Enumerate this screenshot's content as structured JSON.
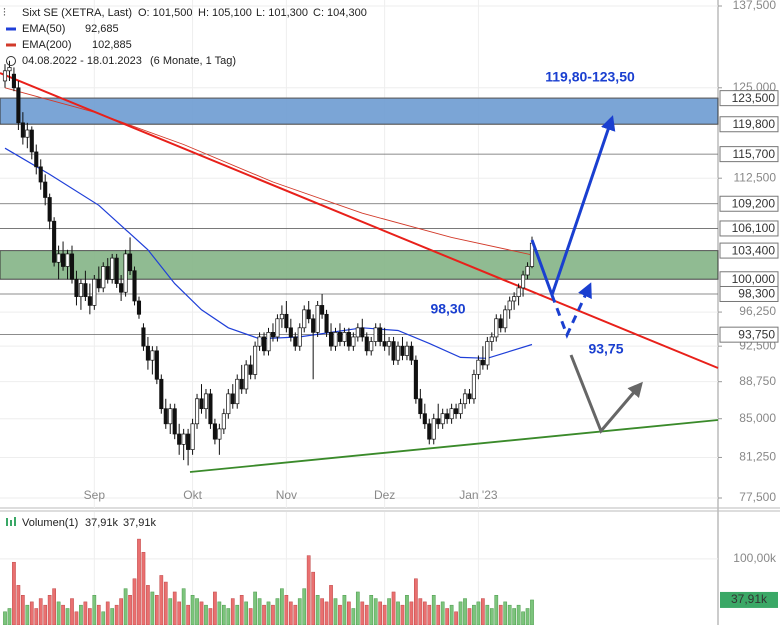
{
  "chart_data": {
    "type": "candlestick",
    "title": "Sixt SE (XETRA, Last)",
    "ohlc_labels": [
      "O: 101,500",
      "H: 105,100",
      "L: 101,300",
      "C: 104,300"
    ],
    "date_range": "04.08.2022 - 18.01.2023",
    "period": "(6 Monate, 1 Tag)",
    "log_scale": true,
    "grid": true,
    "ylim": [
      77.5,
      137.5
    ],
    "yticks": [
      {
        "value": 137.5,
        "label": "137,500"
      },
      {
        "value": 125,
        "label": "125,000"
      },
      {
        "value": 112.5,
        "label": "112,500"
      },
      {
        "value": 96.25,
        "label": "96,250"
      },
      {
        "value": 92.5,
        "label": "92,500"
      },
      {
        "value": 88.75,
        "label": "88,750"
      },
      {
        "value": 85,
        "label": "85,000"
      },
      {
        "value": 81.25,
        "label": "81,250"
      },
      {
        "value": 77.5,
        "label": "77,500"
      }
    ],
    "categories": [
      null,
      null,
      null,
      null,
      null,
      null,
      null,
      null,
      null,
      null,
      null,
      null,
      null,
      null,
      null,
      null,
      null,
      null,
      null,
      null,
      "Sep",
      null,
      null,
      null,
      null,
      null,
      null,
      null,
      null,
      null,
      null,
      null,
      null,
      null,
      null,
      null,
      null,
      null,
      null,
      null,
      null,
      null,
      "Okt",
      null,
      null,
      null,
      null,
      null,
      null,
      null,
      null,
      null,
      null,
      null,
      null,
      null,
      null,
      null,
      null,
      null,
      null,
      null,
      null,
      "Nov",
      null,
      null,
      null,
      null,
      null,
      null,
      null,
      null,
      null,
      null,
      null,
      null,
      null,
      null,
      null,
      null,
      null,
      null,
      null,
      null,
      null,
      "Dez",
      null,
      null,
      null,
      null,
      null,
      null,
      null,
      null,
      null,
      null,
      null,
      null,
      null,
      null,
      null,
      null,
      null,
      null,
      null,
      null,
      "Jan '23",
      null,
      null,
      null,
      null,
      null,
      null,
      null,
      null,
      null,
      null,
      null,
      null
    ],
    "candles": [
      [
        126,
        128.5,
        125,
        127.5
      ],
      [
        127.5,
        129,
        126,
        128
      ],
      [
        127,
        128,
        124.5,
        125
      ],
      [
        125,
        126,
        119,
        120
      ],
      [
        120,
        121.5,
        117,
        118
      ],
      [
        118,
        120,
        116.5,
        119
      ],
      [
        119,
        119.5,
        115,
        116
      ],
      [
        116,
        117,
        113,
        114
      ],
      [
        114,
        115,
        111,
        112
      ],
      [
        112,
        113,
        109,
        110
      ],
      [
        110,
        110.5,
        106,
        107
      ],
      [
        107,
        107.5,
        101.5,
        102
      ],
      [
        102,
        104,
        100,
        103
      ],
      [
        103,
        104.5,
        101,
        101.5
      ],
      [
        101.5,
        103.5,
        100,
        103
      ],
      [
        103,
        104,
        99.5,
        100
      ],
      [
        100,
        101,
        97,
        98
      ],
      [
        98,
        100,
        96.5,
        99.5
      ],
      [
        99.5,
        101,
        97.5,
        98
      ],
      [
        98,
        99.5,
        96,
        97
      ],
      [
        97,
        100.5,
        96.5,
        100
      ],
      [
        100,
        101.5,
        98.5,
        99
      ],
      [
        99,
        102,
        98.5,
        101.5
      ],
      [
        101.5,
        102.5,
        99.5,
        100
      ],
      [
        100,
        103,
        99.5,
        102.5
      ],
      [
        102.5,
        103,
        99,
        99.5
      ],
      [
        99.5,
        100.5,
        97.5,
        98.5
      ],
      [
        98.5,
        103.5,
        98,
        103
      ],
      [
        103,
        105,
        100.5,
        101
      ],
      [
        101,
        101.5,
        97,
        97.5
      ],
      [
        97.5,
        98,
        95.5,
        96
      ],
      [
        94.5,
        95,
        92,
        92.5
      ],
      [
        92.5,
        93.5,
        90,
        91
      ],
      [
        91,
        92.5,
        89.5,
        92
      ],
      [
        92,
        92.5,
        88.5,
        89
      ],
      [
        89,
        89.5,
        85.5,
        86
      ],
      [
        86,
        87,
        84,
        84.5
      ],
      [
        84.5,
        86.5,
        83.5,
        86
      ],
      [
        86,
        86.5,
        83,
        83.5
      ],
      [
        83.5,
        84.5,
        81.5,
        82.5
      ],
      [
        82.5,
        84,
        81,
        83.5
      ],
      [
        83.5,
        84,
        80.5,
        82
      ],
      [
        82,
        85,
        81.5,
        84.5
      ],
      [
        84.5,
        87.5,
        84,
        87
      ],
      [
        87,
        88.5,
        85.5,
        86
      ],
      [
        86,
        88,
        85,
        87.5
      ],
      [
        87.5,
        88,
        84,
        84.5
      ],
      [
        84.5,
        85,
        82.5,
        83
      ],
      [
        83,
        84.5,
        81.5,
        84
      ],
      [
        84,
        86,
        83.5,
        85.5
      ],
      [
        85.5,
        88,
        85,
        87.5
      ],
      [
        87.5,
        88.5,
        86,
        86.5
      ],
      [
        86.5,
        89.5,
        86,
        89
      ],
      [
        89,
        90.5,
        87.5,
        88
      ],
      [
        88,
        91,
        87.5,
        90.5
      ],
      [
        90.5,
        91.5,
        89,
        89.5
      ],
      [
        89.5,
        93,
        89,
        92.5
      ],
      [
        92.5,
        94,
        92,
        93.5
      ],
      [
        93.5,
        94,
        91.5,
        92
      ],
      [
        92,
        94.5,
        91.5,
        94
      ],
      [
        94,
        95,
        93,
        93.5
      ],
      [
        93.5,
        96,
        93,
        95.5
      ],
      [
        95.5,
        97,
        94.5,
        96
      ],
      [
        96,
        97.5,
        94,
        94.5
      ],
      [
        94.5,
        95.5,
        93,
        93.5
      ],
      [
        93.5,
        94,
        92,
        92.5
      ],
      [
        92.5,
        95,
        92,
        94.5
      ],
      [
        94.5,
        97,
        94,
        96.5
      ],
      [
        96.5,
        97.5,
        95,
        95.5
      ],
      [
        95.5,
        96,
        89,
        94
      ],
      [
        94,
        97.5,
        93.5,
        97
      ],
      [
        97,
        98.3,
        95.5,
        96
      ],
      [
        96,
        96.5,
        93.5,
        94
      ],
      [
        94,
        95,
        92,
        92.5
      ],
      [
        92.5,
        94.5,
        92,
        94
      ],
      [
        94,
        95,
        92.5,
        93
      ],
      [
        93,
        94.5,
        92.5,
        94
      ],
      [
        94,
        94.5,
        92,
        92.5
      ],
      [
        92.5,
        94,
        92,
        93.5
      ],
      [
        93.5,
        95,
        93,
        94.5
      ],
      [
        94.5,
        95.5,
        93,
        93.5
      ],
      [
        93.5,
        94,
        91.5,
        92
      ],
      [
        92,
        93.5,
        91.5,
        93
      ],
      [
        93,
        95,
        92.5,
        94.5
      ],
      [
        94.5,
        95,
        92.5,
        93
      ],
      [
        93,
        94.5,
        92,
        92.5
      ],
      [
        92.5,
        93.5,
        91.5,
        93
      ],
      [
        93,
        93.5,
        90.5,
        91
      ],
      [
        91,
        93,
        90.5,
        92.5
      ],
      [
        92.5,
        93.5,
        91,
        91.5
      ],
      [
        91.5,
        93,
        91,
        92.5
      ],
      [
        92.5,
        93,
        90.5,
        91
      ],
      [
        91,
        91.5,
        86.5,
        87
      ],
      [
        87,
        88,
        85,
        85.5
      ],
      [
        85.5,
        86.5,
        84,
        84.5
      ],
      [
        84.5,
        85,
        82.5,
        83
      ],
      [
        83,
        85.5,
        82.5,
        85
      ],
      [
        85,
        86.5,
        84,
        84.5
      ],
      [
        84.5,
        86,
        84,
        85.5
      ],
      [
        85.5,
        86,
        84.5,
        85
      ],
      [
        85,
        86.5,
        84.5,
        86
      ],
      [
        86,
        86.5,
        85,
        85.5
      ],
      [
        85.5,
        87,
        85,
        86.5
      ],
      [
        86.5,
        88,
        86,
        87.5
      ],
      [
        87.5,
        88,
        86.5,
        87
      ],
      [
        87,
        90,
        86.5,
        89.5
      ],
      [
        89.5,
        91.5,
        89,
        91
      ],
      [
        91,
        92.5,
        90,
        90.5
      ],
      [
        90.5,
        93.5,
        90,
        93
      ],
      [
        93,
        94,
        92,
        93.5
      ],
      [
        93.5,
        96,
        93,
        95.5
      ],
      [
        95.5,
        96,
        94,
        94.5
      ],
      [
        94.5,
        97,
        94,
        96.5
      ],
      [
        96.5,
        98,
        95.5,
        97.5
      ],
      [
        97.5,
        98.5,
        96.5,
        98
      ],
      [
        98,
        99.5,
        97,
        99
      ],
      [
        99,
        101,
        98,
        100.5
      ],
      [
        100.5,
        102,
        100,
        101.5
      ],
      [
        101.5,
        105.1,
        101.3,
        104.3
      ]
    ],
    "up_color": "#ffffff",
    "down_color": "#111111",
    "series": [
      {
        "name": "EMA(50)",
        "color": "#1f3fd8",
        "last_label": "92,685",
        "x": [
          0,
          10,
          21,
          32,
          38,
          44,
          50,
          57,
          66,
          80,
          88,
          95,
          102,
          108,
          118
        ],
        "values": [
          116.5,
          113,
          109,
          103.5,
          99.5,
          96.5,
          94.5,
          93.3,
          93.5,
          94.5,
          94.2,
          92.8,
          91.3,
          91.2,
          92.685
        ]
      },
      {
        "name": "EMA(200)",
        "color": "#d23a2a",
        "last_label": "102,885",
        "x": [
          0,
          20,
          40,
          60,
          80,
          100,
          118
        ],
        "values": [
          125,
          121.5,
          117,
          112,
          108,
          105,
          102.885
        ]
      }
    ],
    "levels": [
      {
        "value": 123.5,
        "label": "123,500"
      },
      {
        "value": 119.8,
        "label": "119,800"
      },
      {
        "value": 115.7,
        "label": "115,700"
      },
      {
        "value": 109.2,
        "label": "109,200"
      },
      {
        "value": 106.1,
        "label": "106,100"
      },
      {
        "value": 103.4,
        "label": "103,400"
      },
      {
        "value": 100,
        "label": "100,000"
      },
      {
        "value": 98.3,
        "label": "98,300"
      },
      {
        "value": 93.75,
        "label": "93,750"
      }
    ],
    "zones": [
      {
        "from": 119.8,
        "to": 123.5,
        "color": "#6d9bd2"
      },
      {
        "from": 100,
        "to": 103.4,
        "color": "#84b486"
      }
    ],
    "annotations": [
      "119,80-123,50",
      "98,30",
      "93,75"
    ],
    "volume": {
      "name": "Volumen(1)",
      "legend_values": [
        "37,91k",
        "37,91k"
      ],
      "last_label": "37,91k",
      "ylim": [
        0,
        171
      ],
      "yticks": [
        {
          "value": 100,
          "label": "100,00k"
        }
      ],
      "up_color": "#7cc47c",
      "down_color": "#e97070",
      "values": [
        20,
        25,
        95,
        60,
        45,
        30,
        35,
        25,
        40,
        30,
        45,
        55,
        35,
        30,
        25,
        40,
        20,
        30,
        35,
        25,
        45,
        30,
        20,
        35,
        25,
        30,
        40,
        55,
        45,
        70,
        130,
        110,
        60,
        50,
        45,
        75,
        65,
        40,
        50,
        35,
        55,
        30,
        45,
        40,
        35,
        30,
        25,
        50,
        35,
        30,
        25,
        40,
        30,
        45,
        35,
        25,
        50,
        40,
        30,
        35,
        30,
        40,
        55,
        45,
        35,
        30,
        40,
        55,
        105,
        80,
        45,
        40,
        35,
        60,
        40,
        30,
        45,
        35,
        25,
        50,
        35,
        30,
        45,
        40,
        35,
        30,
        40,
        50,
        35,
        30,
        45,
        35,
        70,
        40,
        35,
        30,
        45,
        30,
        35,
        25,
        30,
        20,
        35,
        40,
        25,
        30,
        35,
        40,
        30,
        25,
        45,
        30,
        35,
        30,
        25,
        30,
        20,
        25,
        37.91
      ]
    }
  }
}
